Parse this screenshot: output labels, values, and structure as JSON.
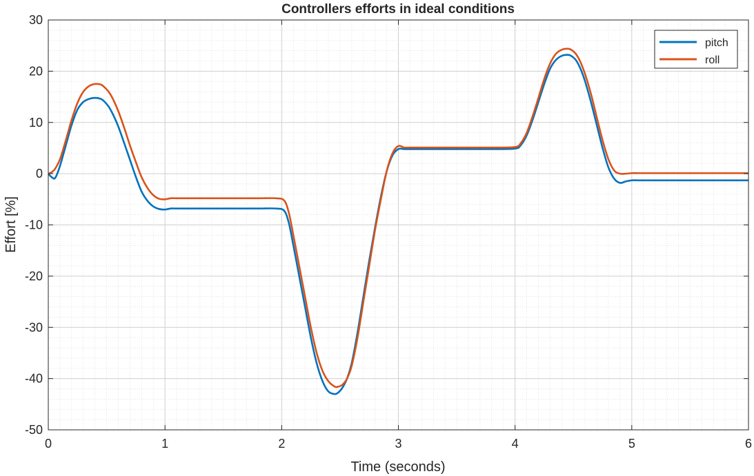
{
  "chart_data": {
    "type": "line",
    "title": "Controllers efforts in ideal conditions",
    "xlabel": "Time (seconds)",
    "ylabel": "Effort [%]",
    "xlim": [
      0,
      6
    ],
    "ylim": [
      -50,
      30
    ],
    "x_ticks": [
      "0",
      "1",
      "2",
      "3",
      "4",
      "5",
      "6"
    ],
    "y_ticks": [
      "30",
      "20",
      "10",
      "0",
      "-10",
      "-20",
      "-30",
      "-40",
      "-50"
    ],
    "grid": "major and minor",
    "legend_position": "top-right",
    "series": [
      {
        "name": "pitch",
        "color": "#0072BD",
        "x": [
          0,
          0.03,
          0.06,
          0.1,
          0.15,
          0.2,
          0.25,
          0.3,
          0.35,
          0.4,
          0.45,
          0.48,
          0.52,
          0.56,
          0.6,
          0.65,
          0.7,
          0.75,
          0.8,
          0.85,
          0.9,
          0.95,
          1.0,
          1.05,
          1.1,
          1.2,
          1.4,
          1.6,
          1.8,
          1.95,
          2.02,
          2.06,
          2.1,
          2.15,
          2.2,
          2.25,
          2.3,
          2.35,
          2.4,
          2.45,
          2.48,
          2.52,
          2.56,
          2.6,
          2.65,
          2.7,
          2.75,
          2.8,
          2.85,
          2.9,
          2.95,
          3.0,
          3.05,
          3.1,
          3.2,
          3.5,
          3.8,
          4.0,
          4.05,
          4.1,
          4.15,
          4.2,
          4.25,
          4.3,
          4.35,
          4.4,
          4.45,
          4.48,
          4.52,
          4.56,
          4.6,
          4.65,
          4.7,
          4.75,
          4.8,
          4.85,
          4.9,
          4.95,
          5.0,
          5.05,
          5.1,
          5.2,
          5.5,
          6.0
        ],
        "values": [
          0,
          -0.7,
          -0.8,
          1.5,
          5.5,
          9.5,
          12.5,
          14.0,
          14.6,
          14.8,
          14.6,
          14.1,
          13.0,
          11.3,
          9.2,
          6.0,
          2.7,
          -0.6,
          -3.5,
          -5.3,
          -6.4,
          -6.9,
          -7.0,
          -6.8,
          -6.8,
          -6.8,
          -6.8,
          -6.8,
          -6.8,
          -6.8,
          -7.2,
          -9.5,
          -14,
          -20,
          -26,
          -32,
          -37,
          -40.5,
          -42.5,
          -43.0,
          -42.8,
          -41.8,
          -40,
          -37,
          -31,
          -24,
          -17,
          -10.5,
          -4.5,
          0.5,
          3.6,
          4.8,
          4.8,
          4.8,
          4.8,
          4.8,
          4.8,
          4.9,
          5.6,
          7.5,
          10.5,
          14.0,
          17.5,
          20.5,
          22.2,
          23.0,
          23.2,
          23.0,
          22.2,
          20.5,
          18.0,
          14.0,
          9.5,
          5.0,
          1.2,
          -1.0,
          -1.8,
          -1.5,
          -1.3,
          -1.3,
          -1.3,
          -1.3,
          -1.3,
          -1.3
        ]
      },
      {
        "name": "roll",
        "color": "#D95319",
        "x": [
          0,
          0.03,
          0.06,
          0.1,
          0.15,
          0.2,
          0.25,
          0.3,
          0.35,
          0.4,
          0.45,
          0.48,
          0.52,
          0.56,
          0.6,
          0.65,
          0.7,
          0.75,
          0.8,
          0.85,
          0.9,
          0.95,
          1.0,
          1.05,
          1.1,
          1.2,
          1.4,
          1.6,
          1.8,
          1.95,
          2.02,
          2.06,
          2.1,
          2.15,
          2.2,
          2.25,
          2.3,
          2.35,
          2.4,
          2.45,
          2.48,
          2.52,
          2.56,
          2.6,
          2.65,
          2.7,
          2.75,
          2.8,
          2.85,
          2.9,
          2.95,
          3.0,
          3.05,
          3.1,
          3.2,
          3.5,
          3.8,
          4.0,
          4.05,
          4.1,
          4.15,
          4.2,
          4.25,
          4.3,
          4.35,
          4.4,
          4.45,
          4.48,
          4.52,
          4.56,
          4.6,
          4.65,
          4.7,
          4.75,
          4.8,
          4.85,
          4.9,
          4.95,
          5.0,
          5.05,
          5.1,
          5.2,
          5.5,
          6.0
        ],
        "values": [
          0,
          0.3,
          1.0,
          2.8,
          6.5,
          10.5,
          13.8,
          16.0,
          17.1,
          17.5,
          17.4,
          16.9,
          15.9,
          14.3,
          12.2,
          9.0,
          5.5,
          2.3,
          -0.7,
          -2.8,
          -4.2,
          -4.9,
          -5.0,
          -4.8,
          -4.8,
          -4.8,
          -4.8,
          -4.8,
          -4.8,
          -4.8,
          -5.2,
          -7.5,
          -12,
          -18,
          -24,
          -30,
          -35,
          -38.5,
          -40.5,
          -41.5,
          -41.6,
          -41.2,
          -40,
          -37.5,
          -32,
          -25,
          -18,
          -11,
          -5,
          0.5,
          4.0,
          5.4,
          5.1,
          5.1,
          5.1,
          5.1,
          5.1,
          5.2,
          6.0,
          8.0,
          11.2,
          14.8,
          18.5,
          21.5,
          23.4,
          24.2,
          24.4,
          24.2,
          23.4,
          21.8,
          19.4,
          15.6,
          11.0,
          6.5,
          2.8,
          0.6,
          0.0,
          0.0,
          0.1,
          0.1,
          0.1,
          0.1,
          0.1,
          0.1
        ]
      }
    ]
  }
}
